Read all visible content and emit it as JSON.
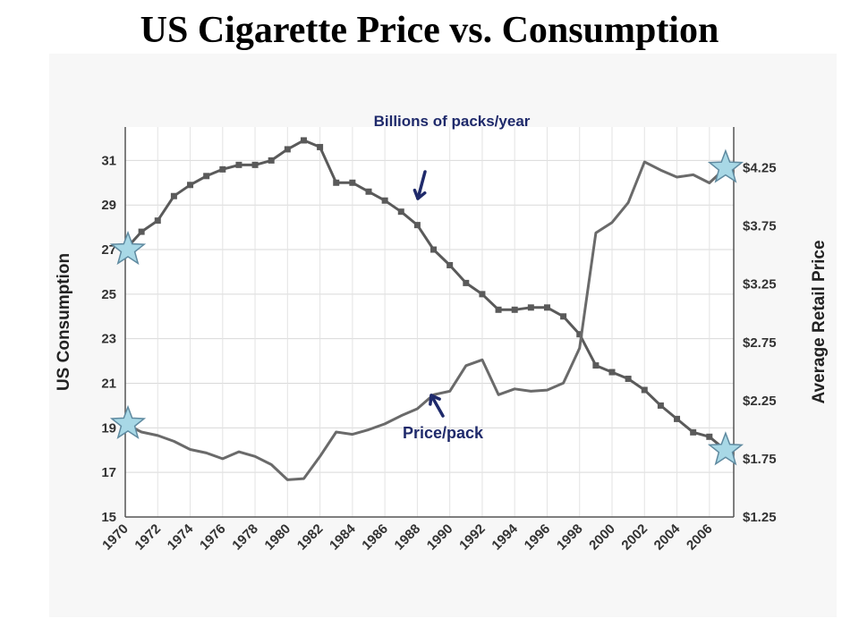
{
  "slide": {
    "title": "US Cigarette Price vs. Consumption"
  },
  "chart_data": {
    "type": "line",
    "title": "US Cigarette Price vs. Consumption",
    "x_ticks": [
      "1970",
      "1972",
      "1974",
      "1976",
      "1978",
      "1980",
      "1982",
      "1984",
      "1986",
      "1988",
      "1990",
      "1992",
      "1994",
      "1996",
      "1998",
      "2000",
      "2002",
      "2004",
      "2006"
    ],
    "y_left": {
      "label": "US Consumption",
      "ticks": [
        15,
        17,
        19,
        21,
        23,
        25,
        27,
        29,
        31
      ],
      "range": [
        15,
        32.5
      ]
    },
    "y_right": {
      "label": "Average Retail Price",
      "ticks": [
        "$1.25",
        "$1.75",
        "$2.25",
        "$2.75",
        "$3.25",
        "$3.75",
        "$4.25"
      ],
      "range": [
        1.25,
        4.6
      ]
    },
    "grid": true,
    "colors": {
      "consumption": "#5a5a5a",
      "price": "#6a6a6a",
      "annotation": "#1f2a6b",
      "star_fill": "#a8d8e6",
      "star_stroke": "#5f8aa0"
    },
    "series": [
      {
        "name": "Billions of packs/year",
        "axis": "left",
        "markers": true,
        "x": [
          1970,
          1971,
          1972,
          1973,
          1974,
          1975,
          1976,
          1977,
          1978,
          1979,
          1980,
          1981,
          1982,
          1983,
          1984,
          1985,
          1986,
          1987,
          1988,
          1989,
          1990,
          1991,
          1992,
          1993,
          1994,
          1995,
          1996,
          1997,
          1998,
          1999,
          2000,
          2001,
          2002,
          2003,
          2004,
          2005,
          2006,
          2007
        ],
        "values": [
          27.0,
          27.8,
          28.3,
          29.4,
          29.9,
          30.3,
          30.6,
          30.8,
          30.8,
          31.0,
          31.5,
          31.9,
          31.6,
          30.0,
          30.0,
          29.6,
          29.2,
          28.7,
          28.1,
          27.0,
          26.3,
          25.5,
          25.0,
          24.3,
          24.3,
          24.4,
          24.4,
          24.0,
          23.2,
          21.8,
          21.5,
          21.2,
          20.7,
          20.0,
          19.4,
          18.8,
          18.6,
          18.0
        ]
      },
      {
        "name": "Price/pack",
        "axis": "right",
        "markers": false,
        "x": [
          1970,
          1971,
          1972,
          1973,
          1974,
          1975,
          1976,
          1977,
          1978,
          1979,
          1980,
          1981,
          1982,
          1983,
          1984,
          1985,
          1986,
          1987,
          1988,
          1989,
          1990,
          1991,
          1992,
          1993,
          1994,
          1995,
          1996,
          1997,
          1998,
          1999,
          2000,
          2001,
          2002,
          2003,
          2004,
          2005,
          2006,
          2007
        ],
        "values": [
          2.05,
          1.98,
          1.95,
          1.9,
          1.83,
          1.8,
          1.75,
          1.81,
          1.77,
          1.7,
          1.57,
          1.58,
          1.77,
          1.98,
          1.96,
          2.0,
          2.05,
          2.12,
          2.18,
          2.3,
          2.33,
          2.55,
          2.6,
          2.3,
          2.35,
          2.33,
          2.34,
          2.4,
          2.7,
          3.69,
          3.78,
          3.95,
          4.3,
          4.23,
          4.17,
          4.19,
          4.12,
          4.25
        ]
      }
    ],
    "annotations": [
      {
        "text": "Billions of packs/year",
        "series": "Billions of packs/year"
      },
      {
        "text": "Price/pack",
        "series": "Price/pack"
      }
    ]
  }
}
